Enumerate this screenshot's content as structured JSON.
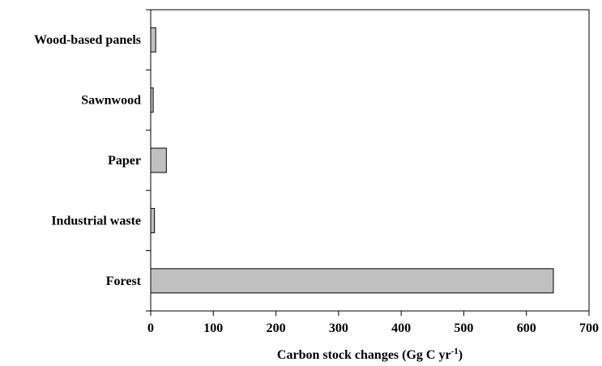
{
  "chart_data": {
    "type": "bar",
    "orientation": "horizontal",
    "categories": [
      "Wood-based panels",
      "Sawnwood",
      "Paper",
      "Industrial waste",
      "Forest"
    ],
    "values": [
      8,
      4,
      25,
      6,
      643
    ],
    "xlabel": "Carbon stock changes (Gg C yr",
    "xlabel_superscript": "-1",
    "xlabel_suffix": ")",
    "ylabel": "",
    "xlim": [
      0,
      700
    ],
    "xticks": [
      0,
      100,
      200,
      300,
      400,
      500,
      600,
      700
    ],
    "grid": false,
    "legend": "none",
    "bar_color": "#c0c0c0",
    "bar_edge_color": "#000000"
  }
}
